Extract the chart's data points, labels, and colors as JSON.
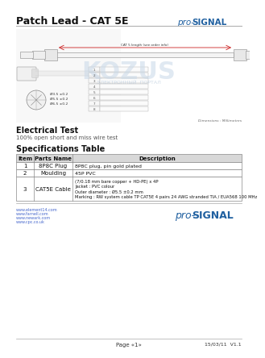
{
  "title": "Patch Lead - CAT 5E",
  "logo_pre": "pro-",
  "logo_bold": "SIGNAL",
  "logo_pre_color": "#2060a0",
  "logo_bold_color": "#2060a0",
  "bg_color": "#ffffff",
  "sep_color": "#aaaaaa",
  "section_electrical": "Electrical Test",
  "electrical_desc": "100% open short and miss wire test",
  "section_specs": "Specifications Table",
  "table_headers": [
    "Item",
    "Parts Name",
    "Description"
  ],
  "table_header_bg": "#d8d8d8",
  "table_rows": [
    [
      "1",
      "8P8C Plug",
      "8P8C plug, pin gold plated"
    ],
    [
      "2",
      "Moulding",
      "45P PVC"
    ],
    [
      "3",
      "CAT5E Cable",
      "(7/0.18 mm bare copper + HD-PE) x 4P\nJacket : PVC colour\nOuter diameter : Ø5.5 ±0.2 mm\nMarking : RW system cable TP CAT5E 4 pairs 24 AWG stranded TIA / EUA568 100 MHz"
    ]
  ],
  "footer_links": [
    "www.element14.com",
    "www.farnell.com",
    "www.newark.com",
    "www.cpc.co.uk"
  ],
  "footer_page": "Page «1»",
  "footer_date": "15/03/11  V1.1",
  "watermark_text": "KOZUS",
  "watermark_sub": "ЭЛЕКТРОННЫЙ  ПОРТАЛ",
  "dim_note": "Dimensions : Millimetres"
}
